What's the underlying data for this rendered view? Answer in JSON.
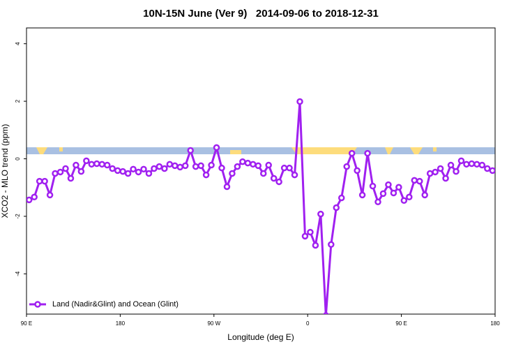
{
  "chart_data": {
    "type": "line",
    "title": "10N-15N June (Ver 9)   2014-09-06 to 2018-12-31",
    "xlabel": "Longitude (deg E)",
    "ylabel": "XCO2 - MLO trend (ppm)",
    "xlim": [
      90,
      540
    ],
    "xticks": [
      {
        "value": 90,
        "label": "90 E"
      },
      {
        "value": 180,
        "label": "180"
      },
      {
        "value": 270,
        "label": "90 W"
      },
      {
        "value": 360,
        "label": "0"
      },
      {
        "value": 450,
        "label": "90 E"
      },
      {
        "value": 540,
        "label": "180"
      }
    ],
    "ylim": [
      -5.4,
      4.55
    ],
    "yticks": [
      -4,
      -2,
      0,
      2,
      4
    ],
    "legend": "bottom-left",
    "x": [
      92.5,
      97.5,
      102.5,
      107.5,
      112.5,
      117.5,
      122.5,
      127.5,
      132.5,
      137.5,
      142.5,
      147.5,
      152.5,
      157.5,
      162.5,
      167.5,
      172.5,
      177.5,
      182.5,
      187.5,
      192.5,
      197.5,
      202.5,
      207.5,
      212.5,
      217.5,
      222.5,
      227.5,
      232.5,
      237.5,
      242.5,
      247.5,
      252.5,
      257.5,
      262.5,
      267.5,
      272.5,
      277.5,
      282.5,
      287.5,
      292.5,
      297.5,
      302.5,
      307.5,
      312.5,
      317.5,
      322.5,
      327.5,
      332.5,
      337.5,
      342.5,
      347.5,
      352.5,
      357.5,
      362.5,
      367.5,
      372.5,
      377.5,
      382.5,
      387.5,
      392.5,
      397.5,
      402.5,
      407.5,
      412.5,
      417.5,
      422.5,
      427.5,
      432.5,
      437.5,
      442.5,
      447.5,
      452.5,
      457.5,
      462.5,
      467.5,
      472.5,
      477.5,
      482.5,
      487.5,
      492.5,
      497.5,
      502.5,
      507.5,
      512.5,
      517.5,
      522.5,
      527.5,
      532.5,
      537.5
    ],
    "series": [
      {
        "name": "Land (Nadir&Glint) and Ocean (Glint)",
        "color": "#a020f0",
        "values": [
          -1.43,
          -1.33,
          -0.78,
          -0.78,
          -1.26,
          -0.51,
          -0.46,
          -0.34,
          -0.68,
          -0.22,
          -0.44,
          -0.07,
          -0.19,
          -0.17,
          -0.19,
          -0.22,
          -0.34,
          -0.41,
          -0.44,
          -0.51,
          -0.36,
          -0.46,
          -0.36,
          -0.51,
          -0.34,
          -0.27,
          -0.34,
          -0.19,
          -0.24,
          -0.29,
          -0.24,
          0.29,
          -0.27,
          -0.24,
          -0.56,
          -0.22,
          0.39,
          -0.32,
          -0.97,
          -0.51,
          -0.27,
          -0.1,
          -0.15,
          -0.19,
          -0.24,
          -0.51,
          -0.22,
          -0.68,
          -0.8,
          -0.32,
          -0.32,
          -0.56,
          1.99,
          -2.69,
          -2.55,
          -3.01,
          -1.92,
          -5.45,
          -2.98,
          -1.7,
          -1.36,
          -0.27,
          0.19,
          -0.41,
          -1.26,
          0.19,
          -0.95,
          -1.5,
          -1.21,
          -0.9,
          -1.19,
          -0.99,
          -1.45,
          -1.33,
          -0.75,
          -0.78,
          -1.26,
          -0.51,
          -0.46,
          -0.34,
          -0.68,
          -0.22,
          -0.44,
          -0.07,
          -0.19,
          -0.17,
          -0.19,
          -0.22,
          -0.34,
          -0.41
        ]
      }
    ]
  }
}
